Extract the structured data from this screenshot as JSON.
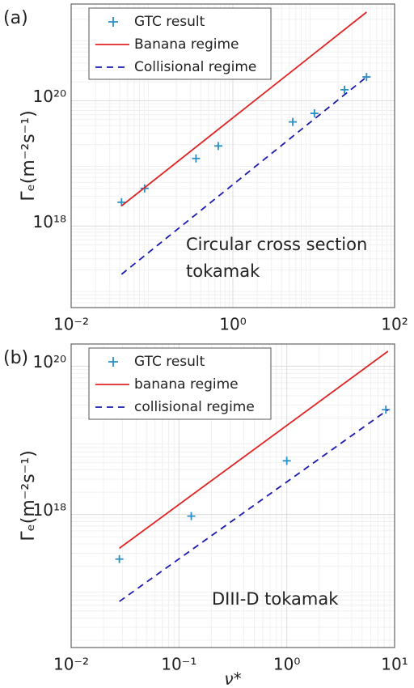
{
  "chart_data": [
    {
      "type": "line",
      "panel_label": "(a)",
      "ylabel": "Γₑ(m⁻²s⁻¹)",
      "log_x": true,
      "log_y": true,
      "grid": true,
      "minor_grid": true,
      "legend": "upper left",
      "annotation": [
        "Circular cross section",
        "tokamak"
      ],
      "xlim": [
        0.01,
        100
      ],
      "ylim": [
        5e+16,
        3.5e+21
      ],
      "xticks": [
        {
          "value": 0.01,
          "label": "10⁻²"
        },
        {
          "value": 1,
          "label": "10⁰"
        },
        {
          "value": 100,
          "label": "10²"
        }
      ],
      "yticks": [
        {
          "value": 1e+18,
          "label": "10¹⁸"
        },
        {
          "value": 1e+20,
          "label": "10²⁰"
        }
      ],
      "series": [
        {
          "name": "GTC result",
          "color": "#2a8fc4",
          "marker": "+",
          "x": [
            0.042,
            0.081,
            0.35,
            0.66,
            5.5,
            10.2,
            24,
            45
          ],
          "values": [
            2.4e+18,
            4e+18,
            1.2e+19,
            1.9e+19,
            4.6e+19,
            6.3e+19,
            1.5e+20,
            2.4e+20
          ]
        },
        {
          "name": "Banana regime",
          "color": "#e02424",
          "style": "solid",
          "x": [
            0.042,
            45
          ],
          "values": [
            2.1e+18,
            2.6e+21
          ]
        },
        {
          "name": "Collisional regime",
          "color": "#1a1ab0",
          "style": "dashed",
          "x": [
            0.042,
            45
          ],
          "values": [
            1.7e+17,
            2.4e+20
          ]
        }
      ]
    },
    {
      "type": "line",
      "panel_label": "(b)",
      "ylabel": "Γₑ(m⁻²s⁻¹)",
      "xlabel": "ν*",
      "log_x": true,
      "log_y": true,
      "grid": true,
      "minor_grid": true,
      "legend": "upper left",
      "annotation": [
        "DIII-D tokamak"
      ],
      "xlim": [
        0.01,
        10
      ],
      "ylim": [
        1.6e+16,
        2e+20
      ],
      "xticks": [
        {
          "value": 0.01,
          "label": "10⁻²"
        },
        {
          "value": 0.1,
          "label": "10⁻¹"
        },
        {
          "value": 1,
          "label": "10⁰"
        },
        {
          "value": 10,
          "label": "10¹"
        }
      ],
      "yticks": [
        {
          "value": 1e+18,
          "label": "10¹⁸"
        },
        {
          "value": 1e+20,
          "label": "10²⁰"
        }
      ],
      "series": [
        {
          "name": "GTC result",
          "color": "#2a8fc4",
          "marker": "+",
          "x": [
            0.028,
            0.13,
            1.0,
            8.3
          ],
          "values": [
            2.5e+17,
            9.5e+17,
            5.3e+18,
            2.6e+19
          ]
        },
        {
          "name": "banana regime",
          "color": "#e02424",
          "style": "solid",
          "x": [
            0.028,
            8.7
          ],
          "values": [
            3.5e+17,
            1.6e+20
          ]
        },
        {
          "name": "collisional regime",
          "color": "#1a1ab0",
          "style": "dashed",
          "x": [
            0.028,
            8.7
          ],
          "values": [
            6.7e+16,
            2.6e+19
          ]
        }
      ]
    }
  ]
}
